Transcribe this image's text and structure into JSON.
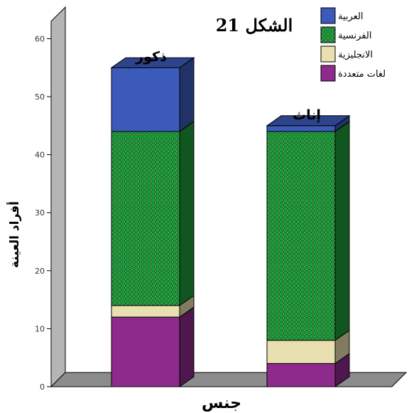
{
  "chart_data": {
    "type": "bar",
    "stacked": true,
    "three_d": true,
    "title": "الشكل 21",
    "xlabel": "جنس",
    "ylabel": "أفراد العينة",
    "ylim": [
      0,
      60
    ],
    "yticks": [
      0,
      10,
      20,
      30,
      40,
      50,
      60
    ],
    "categories": [
      "ذكور",
      "إناث"
    ],
    "series": [
      {
        "name": "لغات متعددة",
        "values": [
          12,
          4
        ],
        "color": "#8e2a8c",
        "pattern": "solid"
      },
      {
        "name": "الانجليزية",
        "values": [
          2,
          4
        ],
        "color": "#e8e0b0",
        "pattern": "solid"
      },
      {
        "name": "الفرنسية",
        "values": [
          30,
          36
        ],
        "color": "#1e9c3a",
        "pattern": "dots"
      },
      {
        "name": "العربية",
        "values": [
          11,
          1
        ],
        "color": "#3c5aba",
        "pattern": "solid"
      }
    ],
    "legend": {
      "placement": "top-right",
      "order": [
        "العربية",
        "الفرنسية",
        "الانجليزية",
        "لغات متعددة"
      ]
    },
    "grid": false
  }
}
